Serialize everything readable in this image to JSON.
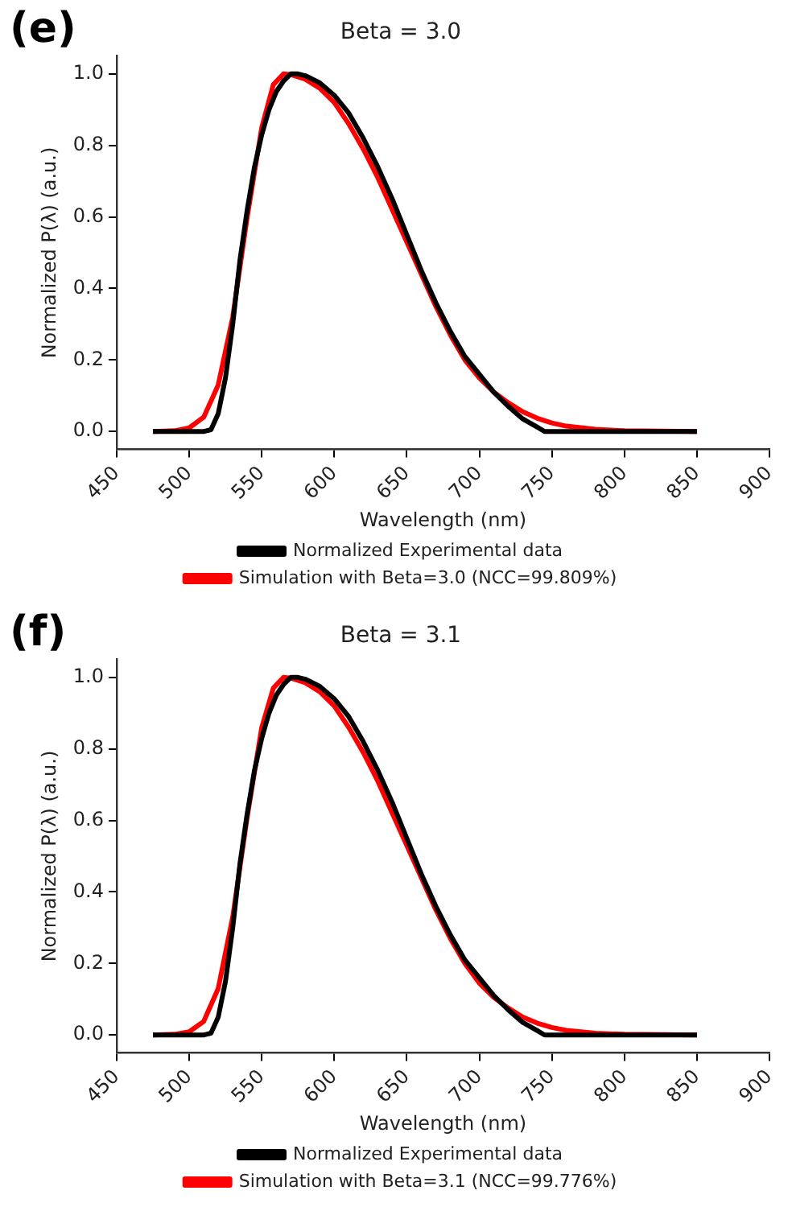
{
  "chart_data": [
    {
      "type": "line",
      "title": "Beta = 3.0",
      "xlabel": "Wavelength (nm)",
      "ylabel": "Normalized P(λ) (a.u.)",
      "annotations": [
        "(e)"
      ],
      "legend": "bottom",
      "grid": false,
      "marker": "none",
      "line_style": "solid",
      "xlim": [
        450,
        900
      ],
      "xticks": [
        450,
        500,
        550,
        600,
        650,
        700,
        750,
        800,
        850,
        900
      ],
      "ylim": [
        -0.05,
        1.05
      ],
      "yticks": [
        {
          "value": 0,
          "label": "0.0"
        },
        {
          "value": 0.2,
          "label": "0.2"
        },
        {
          "value": 0.4,
          "label": "0.4"
        },
        {
          "value": 0.6,
          "label": "0.6"
        },
        {
          "value": 0.8,
          "label": "0.8"
        },
        {
          "value": 1,
          "label": "1.0"
        }
      ],
      "series": [
        {
          "name": "Normalized Experimental data",
          "color": "#000000",
          "x": [
            475,
            510,
            515,
            520,
            525,
            530,
            535,
            540,
            545,
            550,
            555,
            560,
            565,
            570,
            575,
            580,
            590,
            600,
            610,
            620,
            630,
            640,
            650,
            660,
            670,
            680,
            690,
            700,
            710,
            720,
            730,
            740,
            745,
            850
          ],
          "values": [
            0,
            0,
            0.005,
            0.05,
            0.15,
            0.3,
            0.48,
            0.62,
            0.74,
            0.83,
            0.9,
            0.95,
            0.98,
            1.0,
            1.0,
            0.995,
            0.975,
            0.94,
            0.89,
            0.82,
            0.74,
            0.65,
            0.55,
            0.45,
            0.36,
            0.28,
            0.21,
            0.16,
            0.11,
            0.07,
            0.035,
            0.012,
            0,
            0
          ]
        },
        {
          "name": "Simulation with Beta=3.0 (NCC=99.809%)",
          "color": "#ff0000",
          "x": [
            475,
            490,
            500,
            510,
            520,
            530,
            540,
            550,
            558,
            565,
            570,
            580,
            590,
            600,
            610,
            620,
            630,
            640,
            650,
            660,
            670,
            680,
            690,
            700,
            710,
            720,
            730,
            740,
            750,
            760,
            780,
            800,
            850
          ],
          "values": [
            0,
            0.002,
            0.01,
            0.04,
            0.13,
            0.32,
            0.6,
            0.85,
            0.97,
            1.0,
            0.998,
            0.985,
            0.96,
            0.92,
            0.86,
            0.79,
            0.71,
            0.62,
            0.53,
            0.44,
            0.35,
            0.27,
            0.2,
            0.15,
            0.11,
            0.08,
            0.055,
            0.037,
            0.024,
            0.015,
            0.006,
            0.002,
            0
          ]
        }
      ]
    },
    {
      "type": "line",
      "title": "Beta = 3.1",
      "xlabel": "Wavelength (nm)",
      "ylabel": "Normalized P(λ) (a.u.)",
      "annotations": [
        "(f)"
      ],
      "legend": "bottom",
      "grid": false,
      "marker": "none",
      "line_style": "solid",
      "xlim": [
        450,
        900
      ],
      "xticks": [
        450,
        500,
        550,
        600,
        650,
        700,
        750,
        800,
        850,
        900
      ],
      "ylim": [
        -0.05,
        1.05
      ],
      "yticks": [
        {
          "value": 0,
          "label": "0.0"
        },
        {
          "value": 0.2,
          "label": "0.2"
        },
        {
          "value": 0.4,
          "label": "0.4"
        },
        {
          "value": 0.6,
          "label": "0.6"
        },
        {
          "value": 0.8,
          "label": "0.8"
        },
        {
          "value": 1,
          "label": "1.0"
        }
      ],
      "series": [
        {
          "name": "Normalized Experimental data",
          "color": "#000000",
          "x": [
            475,
            510,
            515,
            520,
            525,
            530,
            535,
            540,
            545,
            550,
            555,
            560,
            565,
            570,
            575,
            580,
            590,
            600,
            610,
            620,
            630,
            640,
            650,
            660,
            670,
            680,
            690,
            700,
            710,
            720,
            730,
            740,
            745,
            850
          ],
          "values": [
            0,
            0,
            0.005,
            0.05,
            0.15,
            0.3,
            0.48,
            0.62,
            0.74,
            0.83,
            0.9,
            0.95,
            0.98,
            1.0,
            1.0,
            0.995,
            0.975,
            0.94,
            0.89,
            0.82,
            0.74,
            0.65,
            0.55,
            0.45,
            0.36,
            0.28,
            0.21,
            0.16,
            0.11,
            0.07,
            0.035,
            0.012,
            0,
            0
          ]
        },
        {
          "name": "Simulation with Beta=3.1 (NCC=99.776%)",
          "color": "#ff0000",
          "x": [
            475,
            490,
            500,
            510,
            520,
            530,
            540,
            550,
            558,
            565,
            570,
            580,
            590,
            600,
            610,
            620,
            630,
            640,
            650,
            660,
            670,
            680,
            690,
            700,
            710,
            720,
            730,
            740,
            750,
            760,
            780,
            800,
            850
          ],
          "values": [
            0,
            0.002,
            0.009,
            0.038,
            0.13,
            0.33,
            0.61,
            0.86,
            0.97,
            1.0,
            0.998,
            0.985,
            0.96,
            0.92,
            0.86,
            0.79,
            0.71,
            0.62,
            0.53,
            0.44,
            0.35,
            0.27,
            0.2,
            0.145,
            0.105,
            0.075,
            0.05,
            0.033,
            0.021,
            0.013,
            0.005,
            0.002,
            0
          ]
        }
      ]
    }
  ]
}
